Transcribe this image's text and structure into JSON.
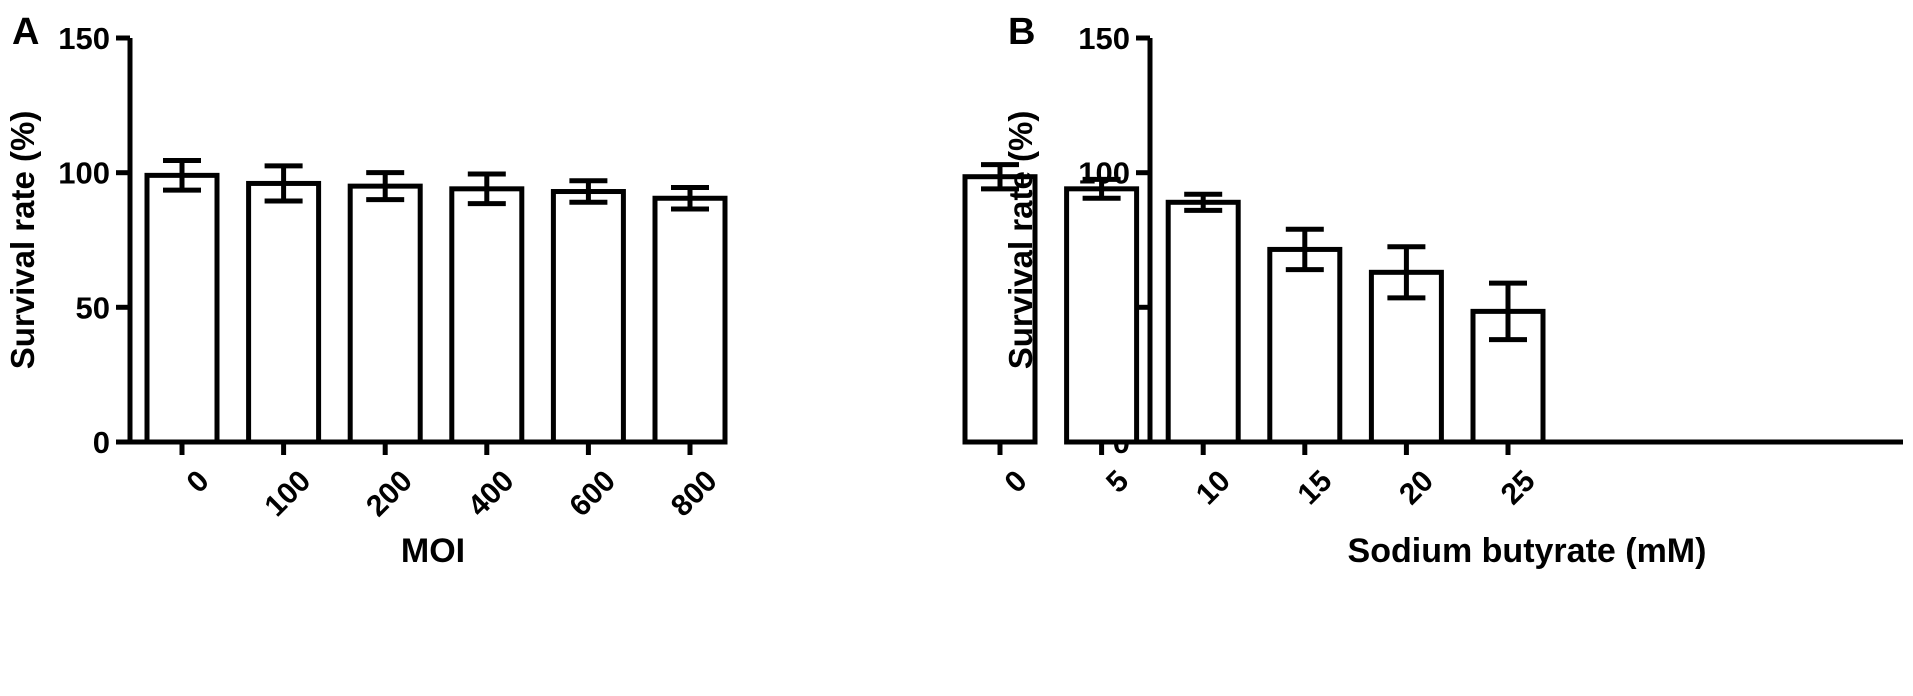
{
  "colors": {
    "ink": "#000000",
    "bar_fill": "#ffffff",
    "background": "#ffffff"
  },
  "chart_data": [
    {
      "type": "bar",
      "panel_label": "A",
      "xlabel": "MOI",
      "ylabel": "Survival rate (%)",
      "ylim": [
        0,
        150
      ],
      "yticks": [
        "0",
        "50",
        "100",
        "150"
      ],
      "categories": [
        "0",
        "100",
        "200",
        "400",
        "600",
        "800"
      ],
      "values": [
        99,
        96,
        95,
        94,
        93,
        90.5
      ],
      "errors": [
        5.5,
        6.5,
        5,
        5.5,
        4,
        4
      ],
      "grid": false,
      "legend": "none"
    },
    {
      "type": "bar",
      "panel_label": "B",
      "xlabel": "Sodium butyrate (mM)",
      "ylabel": "Survival rate (%)",
      "ylim": [
        0,
        150
      ],
      "yticks": [
        "0",
        "50",
        "100",
        "150"
      ],
      "categories": [
        "0",
        "5",
        "10",
        "15",
        "20",
        "25"
      ],
      "values": [
        98.5,
        94,
        89,
        71.5,
        63,
        48.5
      ],
      "errors": [
        4.5,
        3.5,
        3,
        7.5,
        9.5,
        10.5
      ],
      "grid": false,
      "legend": "none"
    }
  ]
}
